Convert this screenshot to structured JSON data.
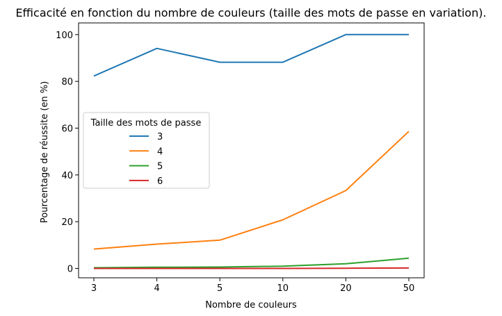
{
  "chart_data": {
    "type": "line",
    "title": "Efficacité en fonction du nombre de couleurs (taille des mots de passe en variation).",
    "xlabel": "Nombre de couleurs",
    "ylabel": "Pourcentage de réussite (en %)",
    "categories": [
      "3",
      "4",
      "5",
      "10",
      "20",
      "50"
    ],
    "ylim": [
      -4,
      105
    ],
    "yticks": [
      0,
      20,
      40,
      60,
      80,
      100
    ],
    "grid": false,
    "legend": {
      "title": "Taille des mots de passe",
      "placement": "center-left"
    },
    "series": [
      {
        "name": "3",
        "color": "#1f77b4",
        "values": [
          82.3,
          94.1,
          88.2,
          88.2,
          100,
          100
        ]
      },
      {
        "name": "4",
        "color": "#ff7f0e",
        "values": [
          8.3,
          10.4,
          12.1,
          20.8,
          33.3,
          58.6
        ]
      },
      {
        "name": "5",
        "color": "#2ca02c",
        "values": [
          0.3,
          0.5,
          0.6,
          1.0,
          2.0,
          4.4
        ]
      },
      {
        "name": "6",
        "color": "#d62728",
        "values": [
          0.0,
          0.0,
          0.0,
          0.0,
          0.1,
          0.2
        ]
      }
    ]
  }
}
